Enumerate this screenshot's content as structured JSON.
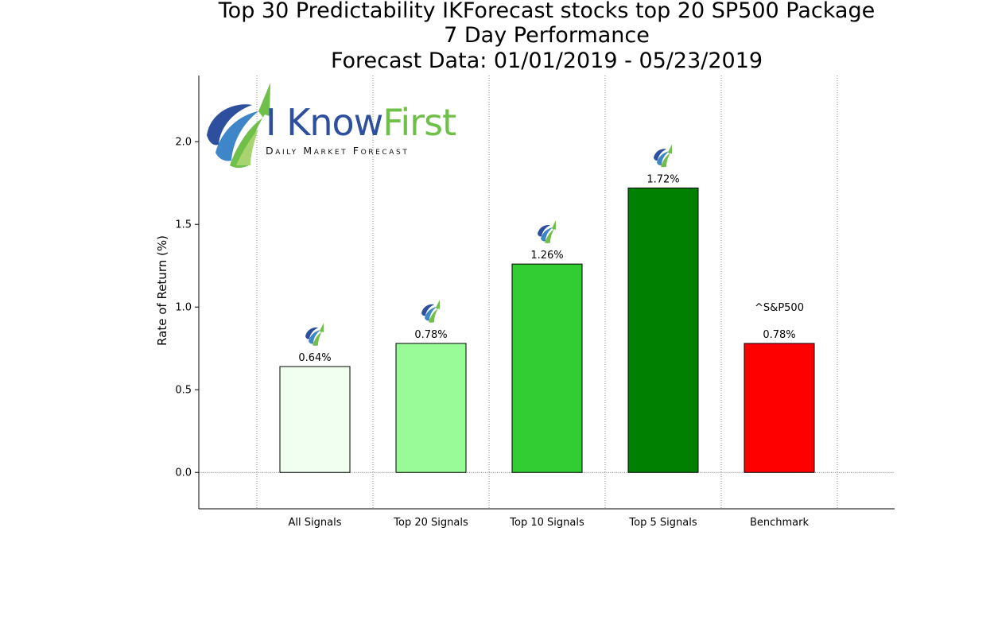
{
  "chart_data": {
    "type": "bar",
    "title_lines": [
      "Top 30 Predictability IKForecast stocks top 20 SP500 Package",
      "7 Day Performance",
      "Forecast Data: 01/01/2019 - 05/23/2019"
    ],
    "ylabel": "Rate of Return (%)",
    "xlabel": "",
    "ylim": [
      -0.22,
      2.4
    ],
    "yticks": [
      "0.0",
      "0.5",
      "1.0",
      "1.5",
      "2.0"
    ],
    "ytick_values": [
      0.0,
      0.5,
      1.0,
      1.5,
      2.0
    ],
    "categories": [
      "All Signals",
      "Top 20 Signals",
      "Top 10 Signals",
      "Top 5 Signals",
      "Benchmark"
    ],
    "values": [
      0.64,
      0.78,
      1.26,
      1.72,
      0.78
    ],
    "data_labels": [
      "0.64%",
      "0.78%",
      "1.26%",
      "1.72%",
      "0.78%"
    ],
    "colors": [
      "#f0fff0",
      "#98fb98",
      "#32cd32",
      "#008000",
      "#ff0000"
    ],
    "benchmark_label": "^S&P500",
    "grid": "vertical dotted lines between categories, dotted line at zero"
  },
  "logo": {
    "brand_part1": "I Know",
    "brand_part2": "First",
    "tagline": "Daily Market Forecast"
  }
}
